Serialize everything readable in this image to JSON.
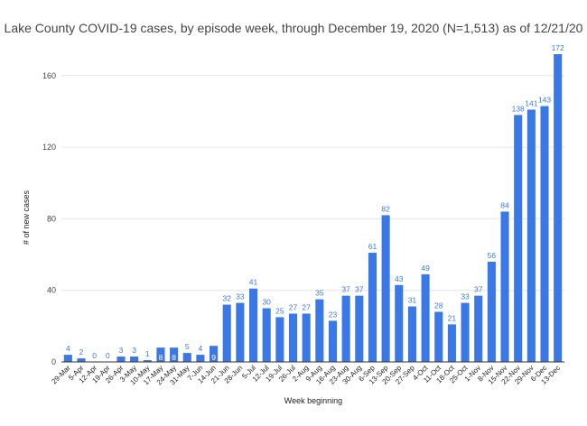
{
  "chart_data": {
    "type": "bar",
    "title": "Lake County COVID-19 cases, by episode week, through December 19, 2020 (N=1,513) as of 12/21/20",
    "xlabel": "Week beginning",
    "ylabel": "# of new cases",
    "ylim": [
      0,
      172
    ],
    "yticks": [
      0,
      40,
      80,
      120,
      160
    ],
    "grid": true,
    "legend": "none",
    "bar_color": "#3b78e7",
    "label_color": "#3b78e7",
    "inside_label_color": "#ffffff",
    "categories": [
      "29-Mar",
      "5-Apr",
      "12-Apr",
      "19-Apr",
      "26-Apr",
      "3-May",
      "10-May",
      "17-May",
      "24-May",
      "31-May",
      "7-Jun",
      "14-Jun",
      "21-Jun",
      "28-Jun",
      "5-Jul",
      "12-Jul",
      "19-Jul",
      "26-Jul",
      "2-Aug",
      "9-Aug",
      "16-Aug",
      "23-Aug",
      "30-Aug",
      "6-Sep",
      "13-Sep",
      "20-Sep",
      "27-Sep",
      "4-Oct",
      "11-Oct",
      "18-Oct",
      "25-Oct",
      "1-Nov",
      "8-Nov",
      "15-Nov",
      "22-Nov",
      "29-Nov",
      "6-Dec",
      "13-Dec"
    ],
    "values": [
      4,
      2,
      0,
      0,
      3,
      3,
      1,
      8,
      8,
      5,
      4,
      9,
      32,
      33,
      41,
      30,
      25,
      27,
      27,
      35,
      23,
      37,
      37,
      61,
      82,
      43,
      31,
      49,
      28,
      21,
      33,
      37,
      56,
      84,
      138,
      141,
      143,
      172
    ]
  }
}
